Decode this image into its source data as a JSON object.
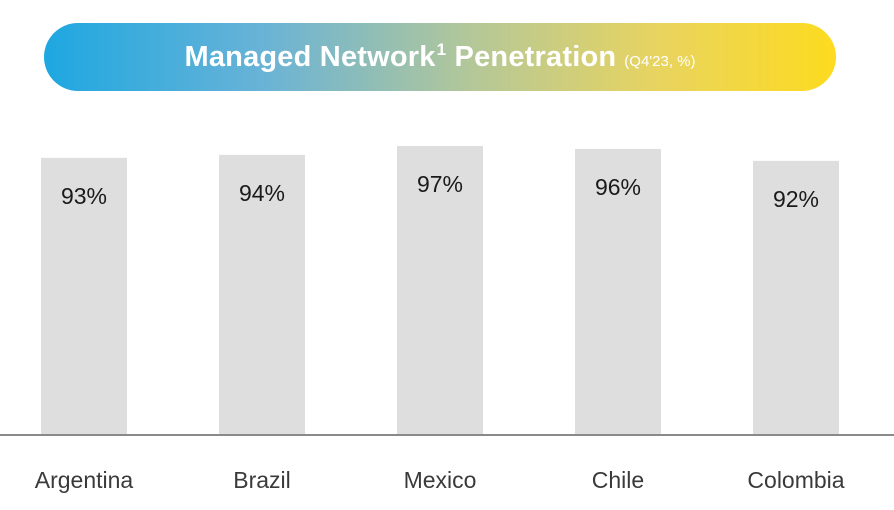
{
  "title": {
    "main": "Managed Network",
    "superscript": "1",
    "main_suffix": " Penetration",
    "sub": "(Q4'23, %)"
  },
  "colors": {
    "bar": "#dedede",
    "baseline": "#8a8a8a",
    "label": "#1a1a1a",
    "category": "#3a3a3a"
  },
  "chart_data": {
    "type": "bar",
    "categories": [
      "Argentina",
      "Brazil",
      "Mexico",
      "Chile",
      "Colombia"
    ],
    "values": [
      93,
      94,
      97,
      96,
      92
    ],
    "data_labels": [
      "93%",
      "94%",
      "97%",
      "96%",
      "92%"
    ],
    "title": "Managed Network¹ Penetration (Q4'23, %)",
    "xlabel": "",
    "ylabel": "",
    "ylim": [
      0,
      100
    ],
    "grid": false,
    "legend": "none"
  }
}
